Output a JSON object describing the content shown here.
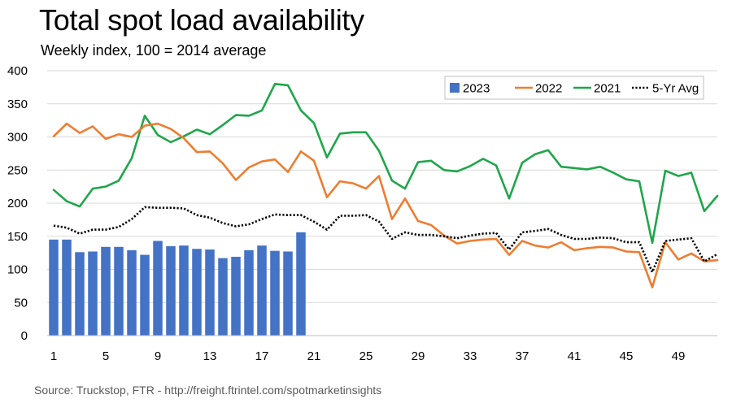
{
  "title": "Total spot load availability",
  "subtitle": "Weekly index, 100 = 2014 average",
  "source": "Source: Truckstop, FTR - http://freight.ftrintel.com/spotmarketinsights",
  "chart_data": {
    "type": "bar+line",
    "ylim": [
      0,
      400
    ],
    "yticks": [
      0,
      50,
      100,
      150,
      200,
      250,
      300,
      350,
      400
    ],
    "xlim": [
      1,
      52
    ],
    "xticks": [
      1,
      5,
      9,
      13,
      17,
      21,
      25,
      29,
      33,
      37,
      41,
      45,
      49
    ],
    "legend_position": "top-right",
    "grid": true,
    "series": [
      {
        "name": "2023",
        "kind": "bar",
        "color": "#4472C4",
        "values": [
          145,
          145,
          126,
          127,
          134,
          134,
          129,
          122,
          143,
          135,
          136,
          131,
          130,
          117,
          119,
          129,
          136,
          128,
          127,
          156
        ]
      },
      {
        "name": "2022",
        "kind": "line",
        "color": "#ED7D31",
        "values": [
          301,
          320,
          306,
          316,
          297,
          304,
          300,
          317,
          320,
          312,
          298,
          277,
          278,
          260,
          235,
          254,
          263,
          266,
          247,
          278,
          264,
          209,
          233,
          230,
          222,
          241,
          176,
          207,
          173,
          167,
          151,
          139,
          143,
          145,
          146,
          122,
          143,
          136,
          133,
          141,
          129,
          132,
          134,
          133,
          127,
          126,
          73,
          141,
          115,
          124,
          112,
          114
        ]
      },
      {
        "name": "2021",
        "kind": "line",
        "color": "#1FA64A",
        "values": [
          220,
          203,
          195,
          222,
          225,
          234,
          268,
          332,
          303,
          292,
          301,
          311,
          304,
          318,
          333,
          332,
          340,
          380,
          378,
          340,
          321,
          269,
          305,
          307,
          307,
          279,
          234,
          222,
          262,
          264,
          250,
          248,
          256,
          267,
          257,
          207,
          261,
          274,
          280,
          255,
          253,
          251,
          255,
          246,
          236,
          233,
          140,
          249,
          241,
          246,
          188,
          211
        ]
      },
      {
        "name": "5-Yr Avg",
        "kind": "dotted-line",
        "color": "#000000",
        "values": [
          166,
          163,
          154,
          160,
          160,
          164,
          176,
          194,
          193,
          193,
          192,
          182,
          178,
          170,
          165,
          168,
          176,
          183,
          182,
          182,
          172,
          160,
          181,
          181,
          182,
          172,
          146,
          156,
          152,
          152,
          150,
          147,
          151,
          154,
          155,
          130,
          156,
          158,
          161,
          152,
          146,
          146,
          148,
          147,
          141,
          141,
          96,
          143,
          145,
          147,
          112,
          123
        ]
      }
    ]
  }
}
